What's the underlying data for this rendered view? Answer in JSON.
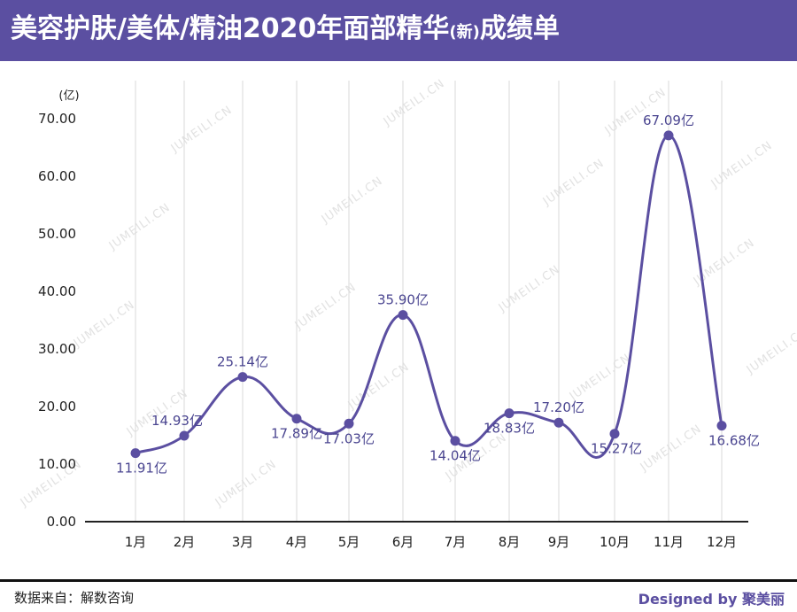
{
  "header": {
    "title_main": "美容护肤/美体/精油2020年面部精华",
    "title_small": "(新)",
    "title_end": "成绩单"
  },
  "watermark": "JUMEILI.CN",
  "footer": {
    "source": "数据来自：解数咨询",
    "brand": "Designed by 聚美丽"
  },
  "colors": {
    "header_bg": "#5b4fa1",
    "line": "#5b4fa1",
    "label": "#4a4590"
  },
  "chart_data": {
    "type": "line",
    "title": "美容护肤/美体/精油2020年面部精华(新)成绩单",
    "y_unit": "(亿)",
    "categories": [
      "1月",
      "2月",
      "3月",
      "4月",
      "5月",
      "6月",
      "7月",
      "8月",
      "9月",
      "10月",
      "11月",
      "12月"
    ],
    "values": [
      11.91,
      14.93,
      25.14,
      17.89,
      17.03,
      35.9,
      14.04,
      18.83,
      17.2,
      15.27,
      67.09,
      16.68
    ],
    "data_labels": [
      "11.91亿",
      "14.93亿",
      "25.14亿",
      "17.89亿",
      "17.03亿",
      "35.90亿",
      "14.04亿",
      "18.83亿",
      "17.20亿",
      "15.27亿",
      "67.09亿",
      "16.68亿"
    ],
    "ylim": [
      0,
      70
    ],
    "yticks": [
      "0.00",
      "10.00",
      "20.00",
      "30.00",
      "40.00",
      "50.00",
      "60.00",
      "70.00"
    ],
    "grid": "vertical",
    "smooth": true
  }
}
